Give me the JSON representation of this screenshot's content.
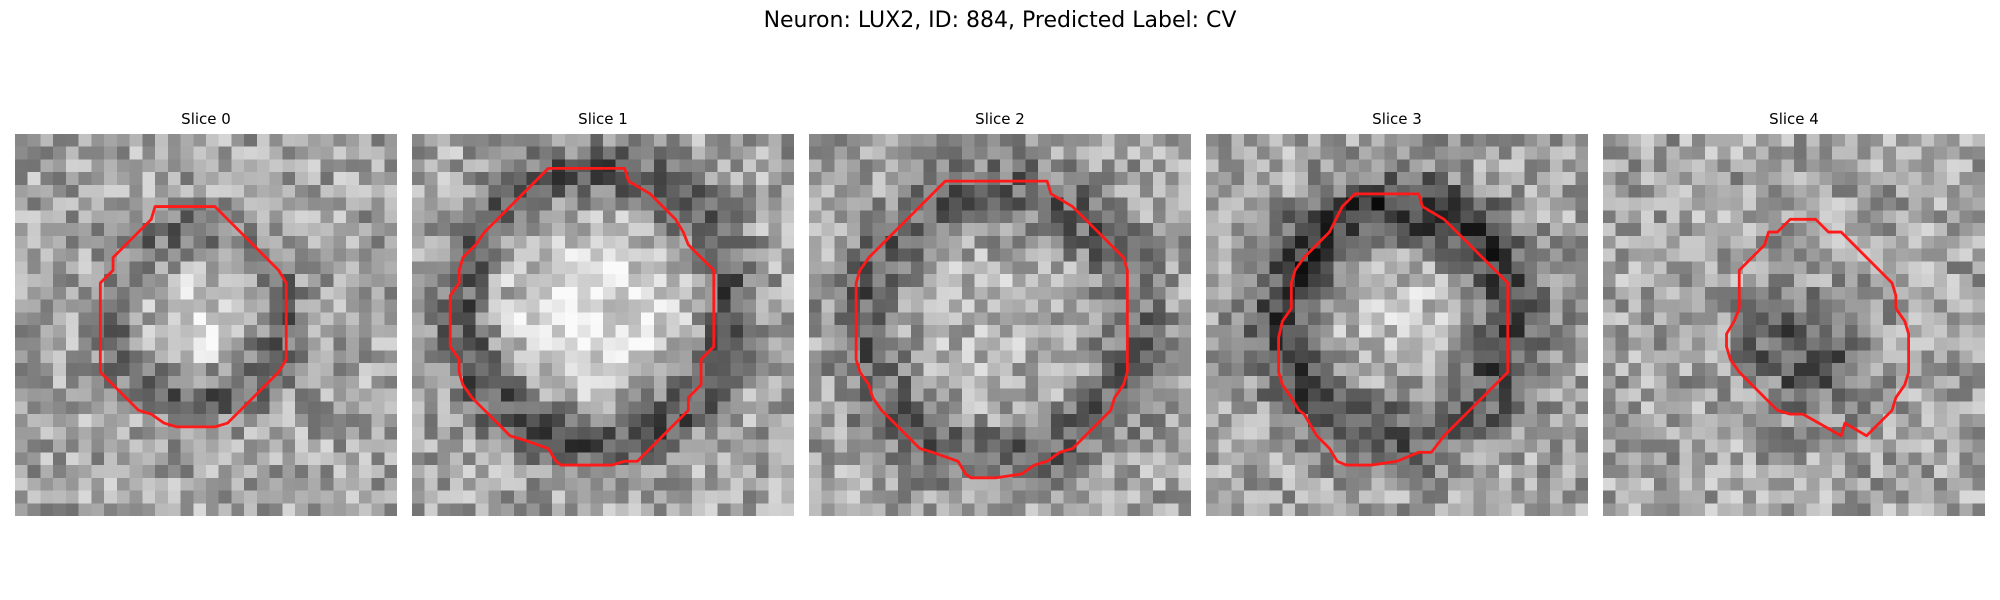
{
  "figure": {
    "title": "Neuron: LUX2, ID: 884, Predicted Label: CV"
  },
  "colors": {
    "contour": "#ff1a1a",
    "background": "#ffffff"
  },
  "grid": {
    "size": 30
  },
  "slices": [
    {
      "title": "Slice 0",
      "seed": 11,
      "blob": {
        "cx": 14.3,
        "cy": 14.3,
        "radius": 6.5,
        "ring_width": 2.0,
        "ring_dark": 0.25,
        "center_bright": 0.18,
        "center_dark": 0.0,
        "ring_bias_y": 0.1
      },
      "contour": [
        [
          15.7,
          5.7
        ],
        [
          16.7,
          6.7
        ],
        [
          17.7,
          7.7
        ],
        [
          18.7,
          8.7
        ],
        [
          19.7,
          9.7
        ],
        [
          20.7,
          10.7
        ],
        [
          21.3,
          11.7
        ],
        [
          21.3,
          12.7
        ],
        [
          21.3,
          13.7
        ],
        [
          21.3,
          14.7
        ],
        [
          21.3,
          15.7
        ],
        [
          21.3,
          16.7
        ],
        [
          21.3,
          17.7
        ],
        [
          20.7,
          18.7
        ],
        [
          19.7,
          19.7
        ],
        [
          18.7,
          20.7
        ],
        [
          17.7,
          21.7
        ],
        [
          16.7,
          22.7
        ],
        [
          15.7,
          23.0
        ],
        [
          14.7,
          23.0
        ],
        [
          13.7,
          23.0
        ],
        [
          12.7,
          23.0
        ],
        [
          11.7,
          22.7
        ],
        [
          10.7,
          22.0
        ],
        [
          9.7,
          21.7
        ],
        [
          8.7,
          20.7
        ],
        [
          7.7,
          19.7
        ],
        [
          6.7,
          18.7
        ],
        [
          6.7,
          17.7
        ],
        [
          6.7,
          16.7
        ],
        [
          6.7,
          15.7
        ],
        [
          6.7,
          14.7
        ],
        [
          6.7,
          13.7
        ],
        [
          6.7,
          12.7
        ],
        [
          6.7,
          11.7
        ],
        [
          7.7,
          10.7
        ],
        [
          7.7,
          9.7
        ],
        [
          8.7,
          8.7
        ],
        [
          9.7,
          7.7
        ],
        [
          10.7,
          6.7
        ],
        [
          11.0,
          5.7
        ],
        [
          12.7,
          5.7
        ],
        [
          14.7,
          5.7
        ]
      ]
    },
    {
      "title": "Slice 1",
      "seed": 23,
      "blob": {
        "cx": 14.3,
        "cy": 13.5,
        "radius": 10.5,
        "ring_width": 2.3,
        "ring_dark": 0.34,
        "center_bright": 0.25,
        "center_dark": 0.0,
        "ring_bias_y": 0.05
      },
      "contour": [
        [
          10.7,
          2.7
        ],
        [
          12.7,
          2.7
        ],
        [
          14.7,
          2.7
        ],
        [
          16.7,
          2.7
        ],
        [
          17.0,
          3.7
        ],
        [
          18.7,
          4.7
        ],
        [
          19.7,
          5.7
        ],
        [
          20.7,
          6.7
        ],
        [
          21.3,
          7.7
        ],
        [
          21.7,
          8.7
        ],
        [
          22.7,
          9.7
        ],
        [
          23.7,
          10.7
        ],
        [
          23.7,
          11.7
        ],
        [
          23.7,
          12.7
        ],
        [
          23.7,
          13.7
        ],
        [
          23.7,
          14.7
        ],
        [
          23.7,
          15.7
        ],
        [
          23.7,
          16.7
        ],
        [
          22.7,
          17.7
        ],
        [
          22.7,
          18.7
        ],
        [
          22.7,
          19.7
        ],
        [
          21.7,
          20.7
        ],
        [
          21.7,
          21.7
        ],
        [
          20.7,
          22.7
        ],
        [
          19.7,
          23.7
        ],
        [
          18.7,
          24.7
        ],
        [
          17.7,
          25.7
        ],
        [
          16.7,
          25.7
        ],
        [
          15.7,
          26.0
        ],
        [
          13.7,
          26.0
        ],
        [
          11.7,
          26.0
        ],
        [
          11.3,
          25.7
        ],
        [
          10.7,
          24.7
        ],
        [
          8.7,
          24.0
        ],
        [
          7.7,
          23.7
        ],
        [
          6.7,
          22.7
        ],
        [
          5.7,
          21.7
        ],
        [
          4.7,
          20.7
        ],
        [
          4.0,
          19.7
        ],
        [
          3.7,
          18.7
        ],
        [
          3.7,
          17.7
        ],
        [
          3.0,
          16.7
        ],
        [
          3.0,
          14.7
        ],
        [
          3.0,
          12.7
        ],
        [
          3.7,
          11.7
        ],
        [
          3.7,
          10.7
        ],
        [
          4.0,
          9.7
        ],
        [
          5.0,
          8.7
        ],
        [
          5.7,
          7.7
        ],
        [
          6.7,
          6.7
        ],
        [
          7.7,
          5.7
        ],
        [
          8.7,
          4.7
        ],
        [
          9.7,
          3.7
        ]
      ]
    },
    {
      "title": "Slice 2",
      "seed": 37,
      "blob": {
        "cx": 15.0,
        "cy": 15.0,
        "radius": 10.5,
        "ring_width": 2.6,
        "ring_dark": 0.26,
        "center_bright": 0.06,
        "center_dark": 0.0,
        "ring_bias_y": 0.0
      },
      "contour": [
        [
          10.7,
          3.7
        ],
        [
          12.7,
          3.7
        ],
        [
          14.7,
          3.7
        ],
        [
          16.7,
          3.7
        ],
        [
          18.7,
          3.7
        ],
        [
          19.0,
          4.7
        ],
        [
          20.7,
          5.7
        ],
        [
          21.7,
          6.7
        ],
        [
          22.7,
          7.7
        ],
        [
          23.7,
          8.7
        ],
        [
          24.7,
          9.7
        ],
        [
          25.0,
          10.7
        ],
        [
          25.0,
          12.7
        ],
        [
          25.0,
          14.7
        ],
        [
          25.0,
          16.7
        ],
        [
          25.0,
          18.7
        ],
        [
          24.7,
          19.7
        ],
        [
          24.0,
          20.7
        ],
        [
          23.7,
          21.7
        ],
        [
          22.7,
          22.7
        ],
        [
          21.7,
          23.7
        ],
        [
          20.7,
          24.7
        ],
        [
          19.7,
          25.0
        ],
        [
          18.7,
          25.7
        ],
        [
          17.7,
          26.0
        ],
        [
          16.7,
          26.7
        ],
        [
          14.7,
          27.0
        ],
        [
          12.7,
          27.0
        ],
        [
          12.3,
          26.7
        ],
        [
          11.7,
          25.7
        ],
        [
          9.7,
          25.0
        ],
        [
          8.7,
          24.7
        ],
        [
          7.7,
          23.7
        ],
        [
          6.7,
          22.7
        ],
        [
          5.7,
          21.7
        ],
        [
          5.0,
          20.7
        ],
        [
          4.7,
          19.7
        ],
        [
          4.0,
          18.7
        ],
        [
          3.7,
          17.7
        ],
        [
          3.7,
          15.7
        ],
        [
          3.7,
          13.7
        ],
        [
          3.7,
          11.7
        ],
        [
          4.0,
          10.7
        ],
        [
          4.7,
          9.7
        ],
        [
          5.7,
          8.7
        ],
        [
          6.7,
          7.7
        ],
        [
          7.7,
          6.7
        ],
        [
          8.7,
          5.7
        ],
        [
          9.7,
          4.7
        ]
      ]
    },
    {
      "title": "Slice 3",
      "seed": 53,
      "blob": {
        "cx": 15.0,
        "cy": 14.8,
        "radius": 8.8,
        "ring_width": 3.0,
        "ring_dark": 0.38,
        "center_bright": 0.12,
        "center_dark": 0.0,
        "ring_bias_y": -0.15
      },
      "contour": [
        [
          11.7,
          4.7
        ],
        [
          13.7,
          4.7
        ],
        [
          15.7,
          4.7
        ],
        [
          16.7,
          4.7
        ],
        [
          17.0,
          5.7
        ],
        [
          18.7,
          6.7
        ],
        [
          19.7,
          7.7
        ],
        [
          20.7,
          8.7
        ],
        [
          21.7,
          9.7
        ],
        [
          22.7,
          10.7
        ],
        [
          23.7,
          11.7
        ],
        [
          23.7,
          12.7
        ],
        [
          23.7,
          13.7
        ],
        [
          23.7,
          14.7
        ],
        [
          23.7,
          15.7
        ],
        [
          23.7,
          16.7
        ],
        [
          23.7,
          17.7
        ],
        [
          23.7,
          18.7
        ],
        [
          22.7,
          19.7
        ],
        [
          21.7,
          20.7
        ],
        [
          20.7,
          21.7
        ],
        [
          19.7,
          22.7
        ],
        [
          18.7,
          23.7
        ],
        [
          17.7,
          25.0
        ],
        [
          16.7,
          25.0
        ],
        [
          15.0,
          25.7
        ],
        [
          13.0,
          26.0
        ],
        [
          11.0,
          26.0
        ],
        [
          10.3,
          25.7
        ],
        [
          9.7,
          24.7
        ],
        [
          8.7,
          23.7
        ],
        [
          7.7,
          22.0
        ],
        [
          7.3,
          21.7
        ],
        [
          6.7,
          20.7
        ],
        [
          6.0,
          19.7
        ],
        [
          5.7,
          18.7
        ],
        [
          5.7,
          17.7
        ],
        [
          5.7,
          16.0
        ],
        [
          6.0,
          14.7
        ],
        [
          6.7,
          13.7
        ],
        [
          6.7,
          12.7
        ],
        [
          6.7,
          11.7
        ],
        [
          7.0,
          10.7
        ],
        [
          7.7,
          9.7
        ],
        [
          8.7,
          8.7
        ],
        [
          9.7,
          7.7
        ],
        [
          10.7,
          5.7
        ]
      ]
    },
    {
      "title": "Slice 4",
      "seed": 71,
      "blob": {
        "cx": 15.8,
        "cy": 17.0,
        "radius": 6.0,
        "ring_width": 1.0,
        "ring_dark": 0.0,
        "center_bright": 0.0,
        "center_dark": 0.34,
        "ring_bias_y": 0.0
      },
      "contour": [
        [
          14.7,
          6.7
        ],
        [
          16.7,
          6.7
        ],
        [
          17.7,
          7.7
        ],
        [
          18.7,
          7.7
        ],
        [
          19.7,
          8.7
        ],
        [
          20.7,
          9.7
        ],
        [
          21.7,
          10.7
        ],
        [
          22.7,
          11.7
        ],
        [
          23.0,
          12.7
        ],
        [
          23.0,
          13.7
        ],
        [
          23.7,
          14.7
        ],
        [
          24.0,
          15.7
        ],
        [
          24.0,
          16.7
        ],
        [
          24.0,
          17.7
        ],
        [
          24.0,
          18.7
        ],
        [
          23.7,
          19.7
        ],
        [
          23.0,
          20.7
        ],
        [
          22.7,
          21.7
        ],
        [
          21.7,
          22.7
        ],
        [
          20.7,
          23.7
        ],
        [
          19.0,
          22.7
        ],
        [
          18.7,
          23.7
        ],
        [
          15.7,
          22.0
        ],
        [
          14.7,
          22.0
        ],
        [
          13.7,
          21.7
        ],
        [
          12.7,
          20.7
        ],
        [
          11.7,
          19.7
        ],
        [
          10.7,
          18.7
        ],
        [
          10.0,
          17.7
        ],
        [
          9.7,
          16.7
        ],
        [
          9.7,
          15.7
        ],
        [
          10.3,
          14.7
        ],
        [
          10.7,
          13.7
        ],
        [
          10.7,
          12.7
        ],
        [
          10.7,
          11.7
        ],
        [
          10.7,
          10.7
        ],
        [
          11.7,
          9.7
        ],
        [
          12.7,
          8.7
        ],
        [
          13.0,
          7.7
        ],
        [
          13.7,
          7.7
        ]
      ]
    }
  ]
}
